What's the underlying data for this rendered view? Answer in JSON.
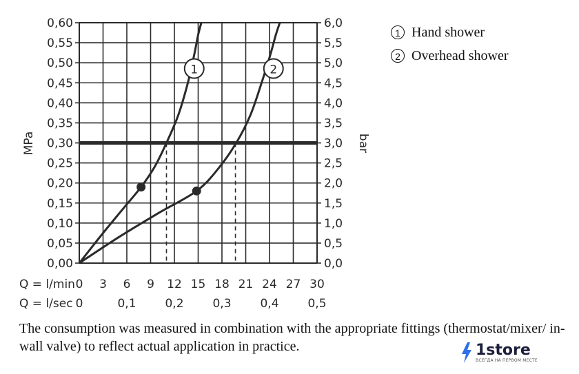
{
  "chart_data": {
    "type": "line",
    "title": "",
    "ylabel_left": "MPa",
    "ylabel_right": "bar",
    "x_row_labels": [
      "Q = l/min",
      "Q = l/sec"
    ],
    "x_ticks_lmin": [
      "0",
      "3",
      "6",
      "9",
      "12",
      "15",
      "18",
      "21",
      "24",
      "27",
      "30"
    ],
    "x_ticks_lsec": [
      "0",
      "0,1",
      "0,2",
      "0,3",
      "0,4",
      "0,5"
    ],
    "y_ticks_mpa": [
      "0,00",
      "0,05",
      "0,10",
      "0,15",
      "0,20",
      "0,25",
      "0,30",
      "0,35",
      "0,40",
      "0,45",
      "0,50",
      "0,55",
      "0,60"
    ],
    "y_ticks_bar": [
      "0,0",
      "0,5",
      "1,0",
      "1,5",
      "2,0",
      "2,5",
      "3,0",
      "3,5",
      "4,0",
      "4,5",
      "5,0",
      "5,5",
      "6,0"
    ],
    "xlim": [
      0,
      30
    ],
    "ylim": [
      0,
      0.6
    ],
    "grid": true,
    "reference_line_mpa": 0.3,
    "series": [
      {
        "name": "1",
        "x": [
          0,
          3,
          5.5,
          7.8,
          9.5,
          11,
          12.5,
          13.7,
          14.5,
          15.0,
          15.4
        ],
        "y": [
          0,
          0.075,
          0.135,
          0.19,
          0.24,
          0.3,
          0.37,
          0.45,
          0.52,
          0.57,
          0.6
        ],
        "marker": [
          7.8,
          0.19
        ],
        "drop_x": 11,
        "label_pos": [
          14.5,
          0.52
        ]
      },
      {
        "name": "2",
        "x": [
          0,
          5,
          10,
          14.8,
          17.5,
          19.8,
          21.6,
          23,
          24.1,
          24.8,
          25.3
        ],
        "y": [
          0,
          0.065,
          0.125,
          0.18,
          0.235,
          0.3,
          0.37,
          0.45,
          0.52,
          0.57,
          0.6
        ],
        "marker": [
          14.8,
          0.18
        ],
        "drop_x": 19.7,
        "label_pos": [
          24.5,
          0.52
        ]
      }
    ]
  },
  "legend": [
    {
      "num": "1",
      "label": "Hand shower"
    },
    {
      "num": "2",
      "label": "Overhead shower"
    }
  ],
  "footnote": "The consumption was measured in combination with the appropriate fittings (thermostat/mixer/ in-wall valve) to reflect actual application in practice.",
  "watermark": {
    "main": "1store",
    "sub": "ВСЕГДА НА ПЕРВОМ МЕСТЕ",
    "accent": "#2f6fe8"
  }
}
